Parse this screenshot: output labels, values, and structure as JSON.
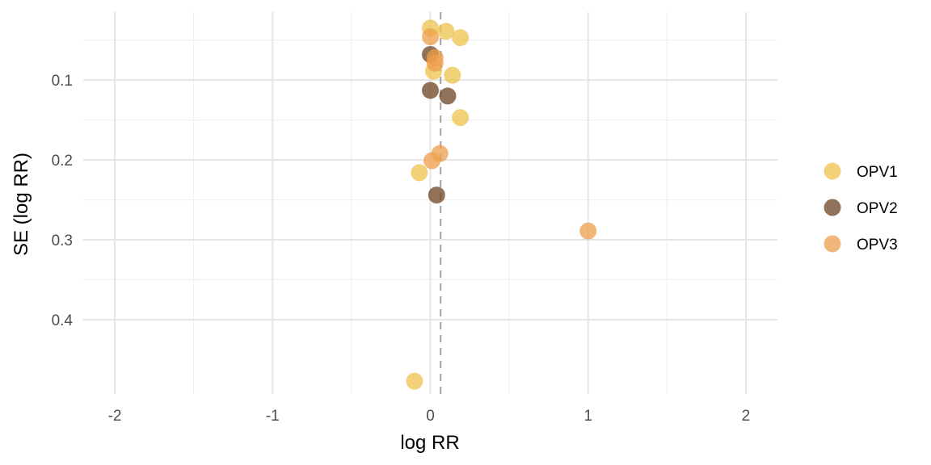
{
  "chart_data": {
    "type": "scatter",
    "title": "",
    "xlabel": "log RR",
    "ylabel": "SE (log RR)",
    "xlim": [
      -2.2,
      2.2
    ],
    "ylim": [
      0.015,
      0.493
    ],
    "y_reversed": true,
    "x_ticks": [
      {
        "value": -2,
        "label": "-2"
      },
      {
        "value": -1,
        "label": "-1"
      },
      {
        "value": 0,
        "label": "0"
      },
      {
        "value": 1,
        "label": "1"
      },
      {
        "value": 2,
        "label": "2"
      }
    ],
    "y_ticks": [
      {
        "value": 0.1,
        "label": "0.1"
      },
      {
        "value": 0.2,
        "label": "0.2"
      },
      {
        "value": 0.3,
        "label": "0.3"
      },
      {
        "value": 0.4,
        "label": "0.4"
      }
    ],
    "grid": true,
    "reference_line": {
      "x": 0.065,
      "style": "dashed"
    },
    "legend_position": "right",
    "series": [
      {
        "name": "OPV1",
        "color": "#EDC34B",
        "points": [
          {
            "x": 0.0,
            "y": 0.035
          },
          {
            "x": 0.1,
            "y": 0.039
          },
          {
            "x": 0.19,
            "y": 0.047
          },
          {
            "x": 0.02,
            "y": 0.089
          },
          {
            "x": 0.14,
            "y": 0.094
          },
          {
            "x": 0.19,
            "y": 0.147
          },
          {
            "x": -0.07,
            "y": 0.216
          },
          {
            "x": -0.1,
            "y": 0.477
          }
        ]
      },
      {
        "name": "OPV2",
        "color": "#6B4423",
        "points": [
          {
            "x": 0.0,
            "y": 0.068
          },
          {
            "x": 0.0,
            "y": 0.113
          },
          {
            "x": 0.11,
            "y": 0.12
          },
          {
            "x": 0.04,
            "y": 0.244
          }
        ]
      },
      {
        "name": "OPV3",
        "color": "#EE9E4B",
        "points": [
          {
            "x": 0.0,
            "y": 0.046
          },
          {
            "x": 0.03,
            "y": 0.072
          },
          {
            "x": 0.03,
            "y": 0.079
          },
          {
            "x": 0.06,
            "y": 0.192
          },
          {
            "x": 0.01,
            "y": 0.201
          },
          {
            "x": 1.0,
            "y": 0.289
          }
        ]
      }
    ]
  }
}
